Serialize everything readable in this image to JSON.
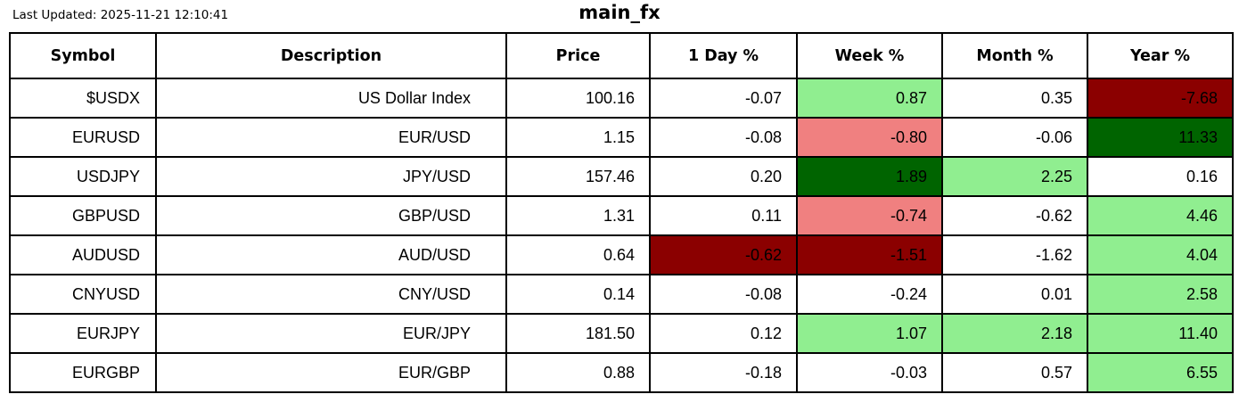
{
  "header": {
    "last_updated": "Last Updated: 2025-11-21 12:10:41",
    "title": "main_fx"
  },
  "colors": {
    "light_green": "#90EE90",
    "dark_green": "#006400",
    "light_red": "#F08080",
    "dark_red": "#8B0000",
    "white": "#FFFFFF",
    "border": "#000000",
    "text": "#000000"
  },
  "chart_data": {
    "type": "table",
    "title": "main_fx",
    "columns": [
      {
        "key": "symbol",
        "label": "Symbol"
      },
      {
        "key": "description",
        "label": "Description"
      },
      {
        "key": "price",
        "label": "Price"
      },
      {
        "key": "day",
        "label": "1 Day %"
      },
      {
        "key": "week",
        "label": "Week %"
      },
      {
        "key": "month",
        "label": "Month %"
      },
      {
        "key": "year",
        "label": "Year %"
      }
    ],
    "rows": [
      {
        "symbol": "$USDX",
        "description": "US Dollar Index",
        "price": "100.16",
        "day": "-0.07",
        "week": "0.87",
        "month": "0.35",
        "year": "-7.68",
        "bg": {
          "week": "light_green",
          "year": "dark_red"
        }
      },
      {
        "symbol": "EURUSD",
        "description": "EUR/USD",
        "price": "1.15",
        "day": "-0.08",
        "week": "-0.80",
        "month": "-0.06",
        "year": "11.33",
        "bg": {
          "week": "light_red",
          "year": "dark_green"
        }
      },
      {
        "symbol": "USDJPY",
        "description": "JPY/USD",
        "price": "157.46",
        "day": "0.20",
        "week": "1.89",
        "month": "2.25",
        "year": "0.16",
        "bg": {
          "week": "dark_green",
          "month": "light_green"
        }
      },
      {
        "symbol": "GBPUSD",
        "description": "GBP/USD",
        "price": "1.31",
        "day": "0.11",
        "week": "-0.74",
        "month": "-0.62",
        "year": "4.46",
        "bg": {
          "week": "light_red",
          "year": "light_green"
        }
      },
      {
        "symbol": "AUDUSD",
        "description": "AUD/USD",
        "price": "0.64",
        "day": "-0.62",
        "week": "-1.51",
        "month": "-1.62",
        "year": "4.04",
        "bg": {
          "day": "dark_red",
          "week": "dark_red",
          "year": "light_green"
        }
      },
      {
        "symbol": "CNYUSD",
        "description": "CNY/USD",
        "price": "0.14",
        "day": "-0.08",
        "week": "-0.24",
        "month": "0.01",
        "year": "2.58",
        "bg": {
          "year": "light_green"
        }
      },
      {
        "symbol": "EURJPY",
        "description": "EUR/JPY",
        "price": "181.50",
        "day": "0.12",
        "week": "1.07",
        "month": "2.18",
        "year": "11.40",
        "bg": {
          "week": "light_green",
          "month": "light_green",
          "year": "light_green"
        }
      },
      {
        "symbol": "EURGBP",
        "description": "EUR/GBP",
        "price": "0.88",
        "day": "-0.18",
        "week": "-0.03",
        "month": "0.57",
        "year": "6.55",
        "bg": {
          "year": "light_green"
        }
      }
    ]
  }
}
